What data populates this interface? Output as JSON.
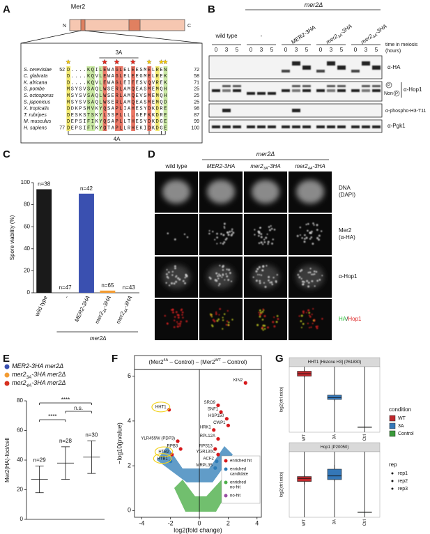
{
  "figure": {
    "panel_labels": [
      "A",
      "B",
      "C",
      "D",
      "E",
      "F",
      "G"
    ],
    "A": {
      "protein": "Mer2",
      "n_term": "N",
      "c_term": "C",
      "motif_3A": "3A",
      "motif_4A": "4A",
      "alignment": [
        {
          "species": "S. cerevisiae",
          "start": 52,
          "sequence": "D....KQILEWAGLELEESMELREN",
          "end": 72
        },
        {
          "species": "C. glabrata",
          "sequence": "D....KQVLEWAGLELEEGMELREK",
          "end": 58
        },
        {
          "species": "K. africana",
          "sequence": "D....KQVLEWAGLEIEESVQVREK",
          "end": 71
        },
        {
          "species": "S. pombe",
          "sequence": "MSYSVSAQLWSERLAMQEASMEMQH",
          "end": 25
        },
        {
          "species": "S. octosporus",
          "sequence": "MSYSVSAQLWSERLAMQEVSMEMQH",
          "end": 25
        },
        {
          "species": "S. japonicus",
          "sequence": "MSYSVSAQLWSERLAMQEASMEMQD",
          "end": 25
        },
        {
          "species": "X. tropicalis",
          "sequence": "DDKPSMVKYQSAPLIAHESYDKDRE",
          "end": 98
        },
        {
          "species": "T. rubripes",
          "sequence": "DESKSTSKYLSSPLLL.GEFKKDRE",
          "end": 87
        },
        {
          "species": "M. musculus",
          "sequence": "DEPSIFIKYQSAPLLTHESYDKDGE",
          "end": 99
        },
        {
          "species": "H. sapiens",
          "start": 77,
          "sequence": "DEPSIFTKYQTAPLLRHEKIDKDGE",
          "end": 100
        }
      ]
    },
    "B": {
      "background": {
        "segments": [
          "mer2Δ"
        ],
        "italic": true
      },
      "strains": [
        {
          "segments": [
            "wild type"
          ],
          "italic": false
        },
        {
          "segments": [
            "-"
          ],
          "italic": false
        },
        {
          "segments": [
            "MER2-3HA"
          ],
          "italic": true
        },
        {
          "segments": [
            "mer2",
            "3A",
            "-3HA"
          ],
          "script": "sub",
          "italic": true
        },
        {
          "segments": [
            "mer2",
            "4A",
            "-3HA"
          ],
          "script": "sub",
          "italic": true
        }
      ],
      "timepoints": [
        0,
        3,
        5
      ],
      "time_label": [
        "time in meiosis",
        "(hours)"
      ],
      "blots": [
        "α-HA",
        "α-Hop1",
        "α-phospho-H3-T11",
        "α-Pgk1"
      ],
      "hop1_forms": {
        "phospho": "P",
        "non": "Non",
        "non_p": "P"
      }
    },
    "C": {
      "type": "bar",
      "ylabel": "Spore viability (%)",
      "categories": [
        {
          "segments": [
            "wild type"
          ],
          "italic": false
        },
        {
          "segments": [
            "-"
          ],
          "italic": false
        },
        {
          "segments": [
            "MER2-3HA"
          ],
          "italic": true
        },
        {
          "segments": [
            "mer2",
            "3A",
            "-3HA"
          ],
          "script": "sub",
          "italic": true
        },
        {
          "segments": [
            "mer2",
            "4A",
            "-3HA"
          ],
          "script": "sub",
          "italic": true
        }
      ],
      "values": [
        94,
        0,
        90,
        2,
        0
      ],
      "n_labels": [
        "n=38",
        "n=47",
        "n=42",
        "n=65",
        "n=43"
      ],
      "colors": [
        "#1a1a1a",
        "#1a1a1a",
        "#3a50b0",
        "#f39c33",
        "#d7301f"
      ],
      "ylim": [
        0,
        100
      ],
      "yticks": [
        0,
        20,
        40,
        60,
        80,
        100
      ],
      "group_label": {
        "segments": [
          "mer2Δ"
        ],
        "italic": true
      }
    },
    "D": {
      "background": {
        "segments": [
          "mer2Δ"
        ],
        "italic": true
      },
      "columns": [
        {
          "segments": [
            "wild type"
          ],
          "italic": false
        },
        {
          "segments": [
            "MER2-3HA"
          ],
          "italic": true
        },
        {
          "segments": [
            "mer2",
            "3A",
            "-3HA"
          ],
          "script": "sub",
          "italic": true
        },
        {
          "segments": [
            "mer2",
            "4A",
            "-3HA"
          ],
          "script": "sub",
          "italic": true
        }
      ],
      "rows": [
        [
          "DNA",
          "(DAPI)"
        ],
        [
          "Mer2",
          "(α-HA)"
        ],
        [
          "α-Hop1"
        ]
      ],
      "merge": {
        "a": "HA",
        "sep": "/",
        "b": "Hop1",
        "a_color": "#22bb33",
        "b_color": "#dd2222"
      }
    },
    "E": {
      "type": "scatter",
      "legend": [
        {
          "segments": [
            "MER2-3HA mer2Δ"
          ],
          "italic": true
        },
        {
          "segments": [
            "mer2",
            "3A",
            "-3HA mer2Δ"
          ],
          "script": "sub",
          "italic": true
        },
        {
          "segments": [
            "mer2",
            "4A",
            "-3HA mer2Δ"
          ],
          "script": "sub",
          "italic": true
        }
      ],
      "colors": [
        "#3a50b0",
        "#f39c33",
        "#d7301f"
      ],
      "means": [
        27,
        38,
        42
      ],
      "sd": [
        9,
        11,
        11
      ],
      "n_labels": [
        "n=29",
        "n=28",
        "n=30"
      ],
      "ylabel": "Mer2(HA)-foci/cell",
      "ylim": [
        0,
        80
      ],
      "yticks": [
        0,
        20,
        40,
        60,
        80
      ],
      "significance": [
        {
          "label": "****",
          "between": [
            0,
            2
          ]
        },
        {
          "label": "n.s.",
          "between": [
            1,
            2
          ]
        },
        {
          "label": "****",
          "between": [
            0,
            1
          ]
        }
      ]
    },
    "F": {
      "type": "scatter",
      "title": {
        "segments": [
          "(Mer2",
          "4A",
          " – Control) – (Mer2",
          "WT",
          " – Control)"
        ],
        "script": "sup",
        "italic": false
      },
      "xlabel": "log2(fold change)",
      "ylabel": "−log10(pvalue)",
      "xlim": [
        -4.5,
        4.3
      ],
      "ylim": [
        -0.3,
        6.3
      ],
      "xticks": [
        -4,
        -2,
        0,
        2,
        4
      ],
      "yticks": [
        0,
        2,
        4,
        6
      ],
      "legend": [
        [
          "enriched hit"
        ],
        [
          "enriched",
          "candidate"
        ],
        [
          "enriched",
          "no-hit"
        ],
        [
          "no-hit"
        ]
      ],
      "legend_colors": [
        "#d7191c",
        "#2c7bb6",
        "#4daf4a",
        "#984ea3"
      ],
      "points": {
        "labels": [
          "KIN2",
          "SRO9",
          "SNF1",
          "HSP150",
          "HRK1",
          "CWP1",
          "RPL12A",
          "HHT1",
          "YLR455W (PDP3)",
          "RPB3",
          "HTB2",
          "HTB1",
          "RPS13",
          "YGR130C",
          "ACF2",
          "MRPL35"
        ],
        "x": [
          3.2,
          1.3,
          1.5,
          1.9,
          1.0,
          2.0,
          1.3,
          -2.1,
          -1.5,
          -1.3,
          -1.9,
          -2.0,
          1.1,
          1.3,
          1.2,
          1.1
        ],
        "y": [
          5.7,
          4.7,
          4.4,
          4.1,
          3.6,
          3.8,
          3.2,
          4.5,
          3.1,
          2.75,
          2.5,
          2.2,
          2.75,
          2.5,
          2.2,
          1.9
        ],
        "status": [
          0,
          0,
          0,
          0,
          0,
          0,
          0,
          0,
          0,
          0,
          0,
          1,
          0,
          0,
          1,
          1
        ]
      },
      "highlight": [
        7,
        10,
        11
      ]
    },
    "G": {
      "type": "box",
      "panels": [
        {
          "title": "HHT1 [Histone H3] (P61830)",
          "boxes": [
            {
              "min": 0.86,
              "q1": 0.88,
              "median": 0.92,
              "q3": 0.96,
              "max": 0.98
            },
            {
              "min": 0.47,
              "q1": 0.5,
              "median": 0.53,
              "q3": 0.57,
              "max": 0.58
            },
            {
              "min": 0.05,
              "q1": 0.05,
              "median": 0.05,
              "q3": 0.05,
              "max": 0.05
            }
          ]
        },
        {
          "title": "Hop1 (P20050)",
          "boxes": [
            {
              "min": 0.5,
              "q1": 0.55,
              "median": 0.6,
              "q3": 0.63,
              "max": 0.66
            },
            {
              "min": 0.55,
              "q1": 0.58,
              "median": 0.64,
              "q3": 0.75,
              "max": 0.82
            },
            {
              "min": 0.05,
              "q1": 0.05,
              "median": 0.05,
              "q3": 0.05,
              "max": 0.05
            }
          ]
        }
      ],
      "categories": [
        "WT",
        "3A",
        "Ctrl"
      ],
      "ylabel": "log2(ctrl.ratio)",
      "ylim": [
        0,
        1
      ],
      "legend_title": "condition",
      "legend": [
        "WT",
        "3A",
        "Control"
      ],
      "colors": [
        "#c0282d",
        "#3477b8",
        "#3a9a3a"
      ],
      "rep_title": "rep",
      "reps": [
        "rep1",
        "rep2",
        "rep3"
      ]
    }
  }
}
